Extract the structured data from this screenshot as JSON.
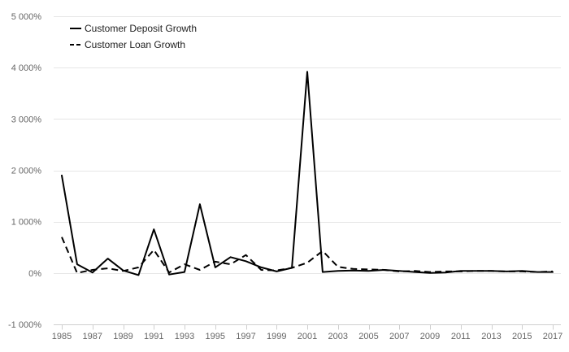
{
  "chart_data": {
    "type": "line",
    "title": "",
    "xlabel": "",
    "ylabel": "",
    "x": [
      1985,
      1986,
      1987,
      1988,
      1989,
      1990,
      1991,
      1992,
      1993,
      1994,
      1995,
      1996,
      1997,
      1998,
      1999,
      2000,
      2001,
      2002,
      2003,
      2004,
      2005,
      2006,
      2007,
      2008,
      2009,
      2010,
      2011,
      2012,
      2013,
      2014,
      2015,
      2016,
      2017
    ],
    "xticks": [
      1985,
      1987,
      1989,
      1991,
      1993,
      1995,
      1997,
      1999,
      2001,
      2003,
      2005,
      2007,
      2009,
      2011,
      2013,
      2015,
      2017
    ],
    "xtick_labels": [
      "1985",
      "1987",
      "1989",
      "1991",
      "1993",
      "1995",
      "1997",
      "1999",
      "2001",
      "2003",
      "2005",
      "2007",
      "2009",
      "2011",
      "2013",
      "2015",
      "2017"
    ],
    "ylim": [
      -1000,
      5000
    ],
    "yticks": [
      -1000,
      0,
      1000,
      2000,
      3000,
      4000,
      5000
    ],
    "ytick_labels": [
      "-1 000%",
      "0%",
      "1 000%",
      "2 000%",
      "3 000%",
      "4 000%",
      "5 000%"
    ],
    "grid": true,
    "legend_position": "top-left",
    "series": [
      {
        "name": "Customer Deposit Growth",
        "style": "solid",
        "color": "#000000",
        "values": [
          1900,
          170,
          10,
          280,
          50,
          -40,
          850,
          -30,
          20,
          1340,
          110,
          310,
          230,
          110,
          30,
          100,
          3920,
          20,
          40,
          50,
          40,
          60,
          40,
          20,
          0,
          10,
          40,
          40,
          40,
          30,
          40,
          20,
          20
        ]
      },
      {
        "name": "Customer Loan Growth",
        "style": "dashed",
        "color": "#000000",
        "values": [
          700,
          0,
          60,
          90,
          40,
          110,
          450,
          10,
          170,
          60,
          220,
          170,
          350,
          60,
          50,
          100,
          200,
          430,
          120,
          80,
          70,
          60,
          30,
          40,
          20,
          30,
          30,
          40,
          40,
          30,
          30,
          20,
          30
        ]
      }
    ]
  }
}
